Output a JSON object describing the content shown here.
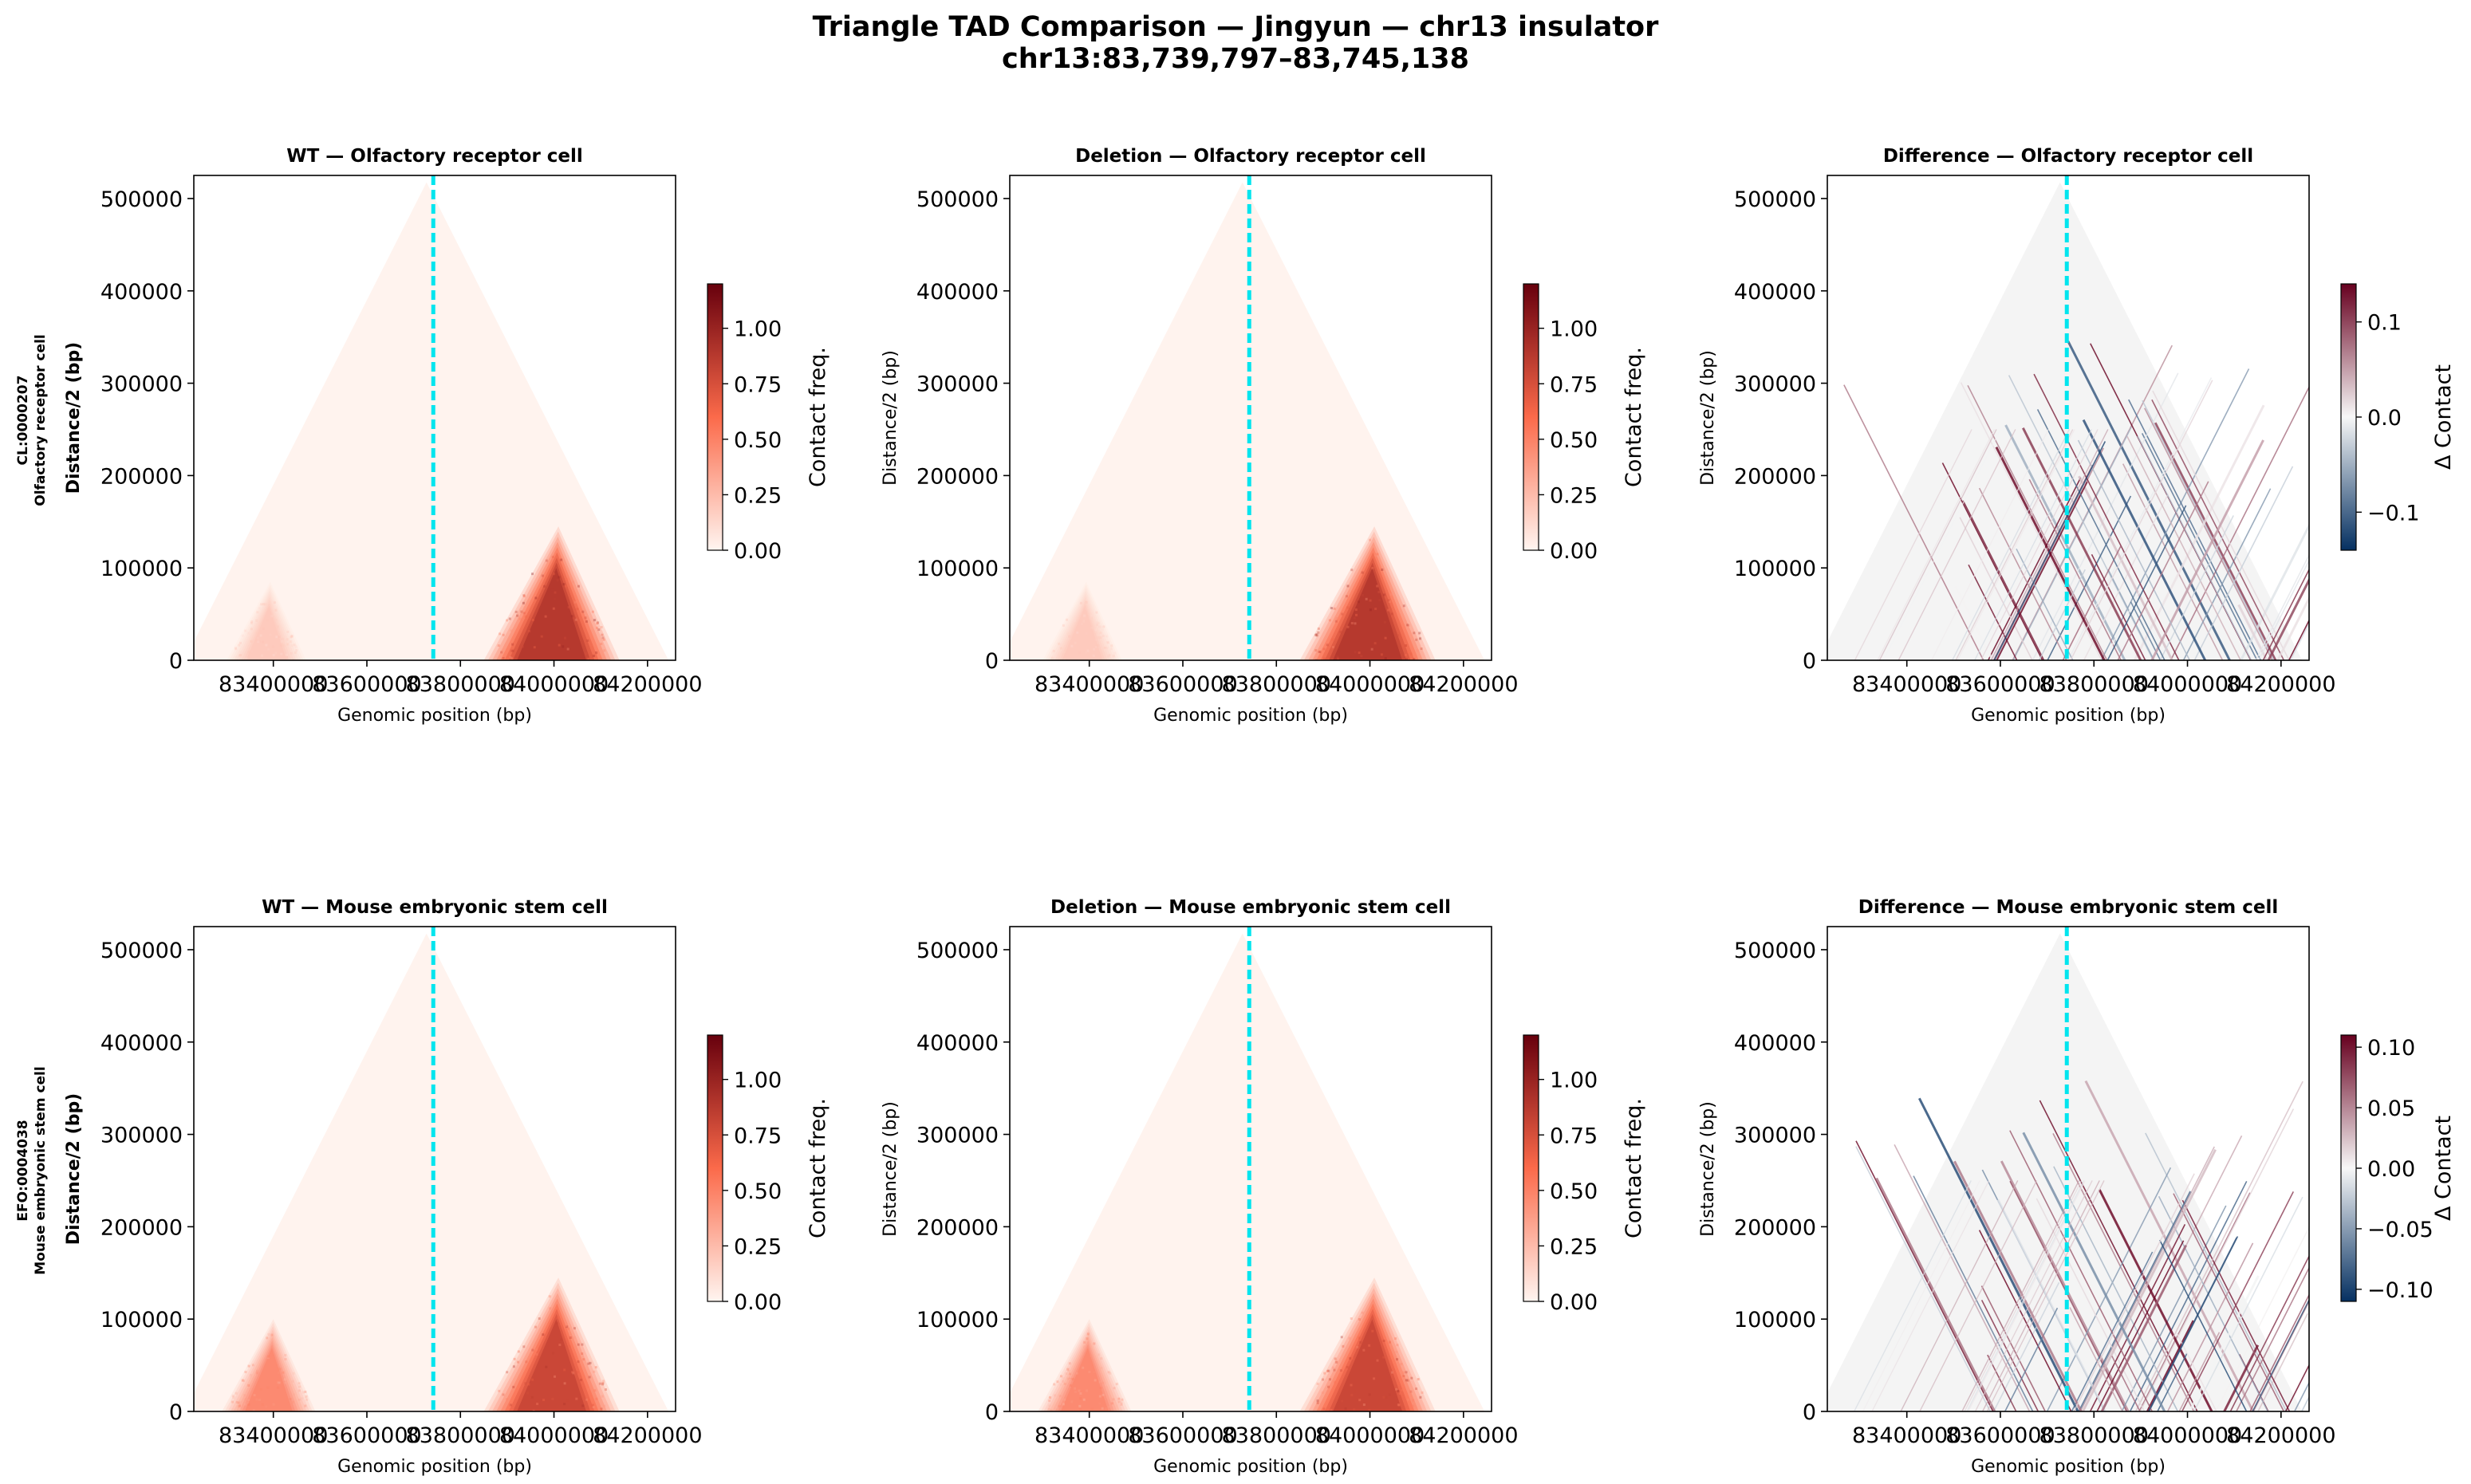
{
  "figure": {
    "title_line1": "Triangle TAD Comparison — Jingyun — chr13 insulator",
    "title_line2": "chr13:83,739,797–83,745,138"
  },
  "rows": [
    {
      "id": "CL:0000207",
      "name": "Olfactory receptor cell"
    },
    {
      "id": "EFO:0004038",
      "name": "Mouse embryonic stem cell"
    }
  ],
  "chart_data": [
    {
      "type": "heatmap",
      "panel": "wt-olfactory",
      "title": "WT — Olfactory receptor cell",
      "xlabel": "Genomic position (bp)",
      "ylabel": "Distance/2 (bp)",
      "xlim": [
        83230000,
        84260000
      ],
      "ylim": [
        0,
        525000
      ],
      "xticks": [
        83400000,
        83600000,
        83800000,
        84000000,
        84200000
      ],
      "xtick_labels": [
        "83400000",
        "83600000",
        "83800000",
        "84000000",
        "84200000"
      ],
      "yticks": [
        0,
        100000,
        200000,
        300000,
        400000,
        500000
      ],
      "ytick_labels": [
        "0",
        "100000",
        "200000",
        "300000",
        "400000",
        "500000"
      ],
      "insulator_x": 83742000,
      "colormap": "Reds",
      "clim": [
        0,
        1.2
      ],
      "colorbar_label": "Contact freq.",
      "colorbar_ticks": [
        "0.00",
        "0.25",
        "0.50",
        "0.75",
        "1.00"
      ],
      "domains": [
        {
          "start": 83300000,
          "end": 83470000,
          "peak": 0.22
        },
        {
          "start": 83850000,
          "end": 84140000,
          "peak": 1.05
        }
      ]
    },
    {
      "type": "heatmap",
      "panel": "del-olfactory",
      "title": "Deletion — Olfactory receptor cell",
      "xlabel": "Genomic position (bp)",
      "ylabel": "Distance/2 (bp)",
      "xlim": [
        83230000,
        84260000
      ],
      "ylim": [
        0,
        525000
      ],
      "xticks": [
        83400000,
        83600000,
        83800000,
        84000000,
        84200000
      ],
      "xtick_labels": [
        "83400000",
        "83600000",
        "83800000",
        "84000000",
        "84200000"
      ],
      "yticks": [
        0,
        100000,
        200000,
        300000,
        400000,
        500000
      ],
      "ytick_labels": [
        "0",
        "100000",
        "200000",
        "300000",
        "400000",
        "500000"
      ],
      "insulator_x": 83742000,
      "colormap": "Reds",
      "clim": [
        0,
        1.2
      ],
      "colorbar_label": "Contact freq.",
      "colorbar_ticks": [
        "0.00",
        "0.25",
        "0.50",
        "0.75",
        "1.00"
      ],
      "domains": [
        {
          "start": 83300000,
          "end": 83470000,
          "peak": 0.22
        },
        {
          "start": 83850000,
          "end": 84140000,
          "peak": 1.05
        }
      ]
    },
    {
      "type": "heatmap",
      "panel": "diff-olfactory",
      "title": "Difference — Olfactory receptor cell",
      "xlabel": "Genomic position (bp)",
      "ylabel": "Distance/2 (bp)",
      "xlim": [
        83230000,
        84260000
      ],
      "ylim": [
        0,
        525000
      ],
      "xticks": [
        83400000,
        83600000,
        83800000,
        84000000,
        84200000
      ],
      "xtick_labels": [
        "83400000",
        "83600000",
        "83800000",
        "84000000",
        "84200000"
      ],
      "yticks": [
        0,
        100000,
        200000,
        300000,
        400000,
        500000
      ],
      "ytick_labels": [
        "0",
        "100000",
        "200000",
        "300000",
        "400000",
        "500000"
      ],
      "insulator_x": 83742000,
      "colormap": "RdBu_r",
      "clim": [
        -0.14,
        0.14
      ],
      "colorbar_label": "Δ Contact",
      "colorbar_ticks": [
        "−0.1",
        "0.0",
        "0.1"
      ],
      "colorbar_tick_values": [
        -0.1,
        0.0,
        0.1
      ]
    },
    {
      "type": "heatmap",
      "panel": "wt-mesc",
      "title": "WT — Mouse embryonic stem cell",
      "xlabel": "Genomic position (bp)",
      "ylabel": "Distance/2 (bp)",
      "xlim": [
        83230000,
        84260000
      ],
      "ylim": [
        0,
        525000
      ],
      "xticks": [
        83400000,
        83600000,
        83800000,
        84000000,
        84200000
      ],
      "xtick_labels": [
        "83400000",
        "83600000",
        "83800000",
        "84000000",
        "84200000"
      ],
      "yticks": [
        0,
        100000,
        200000,
        300000,
        400000,
        500000
      ],
      "ytick_labels": [
        "0",
        "100000",
        "200000",
        "300000",
        "400000",
        "500000"
      ],
      "insulator_x": 83742000,
      "colormap": "Reds",
      "clim": [
        0,
        1.2
      ],
      "colorbar_label": "Contact freq.",
      "colorbar_ticks": [
        "0.00",
        "0.25",
        "0.50",
        "0.75",
        "1.00"
      ],
      "domains": [
        {
          "start": 83290000,
          "end": 83490000,
          "peak": 0.55
        },
        {
          "start": 83850000,
          "end": 84140000,
          "peak": 0.95
        }
      ]
    },
    {
      "type": "heatmap",
      "panel": "del-mesc",
      "title": "Deletion — Mouse embryonic stem cell",
      "xlabel": "Genomic position (bp)",
      "ylabel": "Distance/2 (bp)",
      "xlim": [
        83230000,
        84260000
      ],
      "ylim": [
        0,
        525000
      ],
      "xticks": [
        83400000,
        83600000,
        83800000,
        84000000,
        84200000
      ],
      "xtick_labels": [
        "83400000",
        "83600000",
        "83800000",
        "84000000",
        "84200000"
      ],
      "yticks": [
        0,
        100000,
        200000,
        300000,
        400000,
        500000
      ],
      "ytick_labels": [
        "0",
        "100000",
        "200000",
        "300000",
        "400000",
        "500000"
      ],
      "insulator_x": 83742000,
      "colormap": "Reds",
      "clim": [
        0,
        1.2
      ],
      "colorbar_label": "Contact freq.",
      "colorbar_ticks": [
        "0.00",
        "0.25",
        "0.50",
        "0.75",
        "1.00"
      ],
      "domains": [
        {
          "start": 83290000,
          "end": 83490000,
          "peak": 0.55
        },
        {
          "start": 83850000,
          "end": 84140000,
          "peak": 0.95
        }
      ]
    },
    {
      "type": "heatmap",
      "panel": "diff-mesc",
      "title": "Difference — Mouse embryonic stem cell",
      "xlabel": "Genomic position (bp)",
      "ylabel": "Distance/2 (bp)",
      "xlim": [
        83230000,
        84260000
      ],
      "ylim": [
        0,
        525000
      ],
      "xticks": [
        83400000,
        83600000,
        83800000,
        84000000,
        84200000
      ],
      "xtick_labels": [
        "83400000",
        "83600000",
        "83800000",
        "84000000",
        "84200000"
      ],
      "yticks": [
        0,
        100000,
        200000,
        300000,
        400000,
        500000
      ],
      "ytick_labels": [
        "0",
        "100000",
        "200000",
        "300000",
        "400000",
        "500000"
      ],
      "insulator_x": 83742000,
      "colormap": "RdBu_r",
      "clim": [
        -0.11,
        0.11
      ],
      "colorbar_label": "Δ Contact",
      "colorbar_ticks": [
        "−0.10",
        "−0.05",
        "0.00",
        "0.05",
        "0.10"
      ],
      "colorbar_tick_values": [
        -0.1,
        -0.05,
        0.0,
        0.05,
        0.1
      ]
    }
  ],
  "colors": {
    "insulator_line": "#00e5ee",
    "reds_low": "#fff5f0",
    "reds_mid": "#fb6a4a",
    "reds_high": "#67000d",
    "rdbu_neg": "#053061",
    "rdbu_zero": "#f7f7f7",
    "rdbu_pos": "#67001f"
  }
}
